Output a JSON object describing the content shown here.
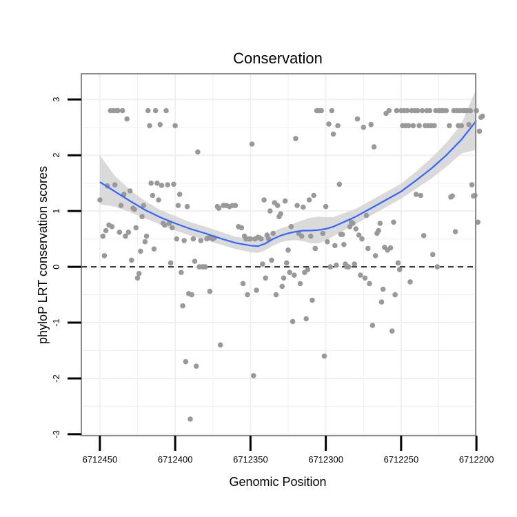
{
  "chart_data": {
    "type": "scatter",
    "title": "Conservation",
    "xlabel": "Genomic Position",
    "ylabel": "phyloP LRT conservation scores",
    "x_reversed": true,
    "xlim": [
      6712450,
      6712200
    ],
    "ylim": [
      -3,
      3
    ],
    "x_ticks": [
      6712450,
      6712400,
      6712350,
      6712300,
      6712250,
      6712200
    ],
    "x_tick_labels": [
      "6712450",
      "6712400",
      "6712350",
      "6712300",
      "6712250",
      "6712200"
    ],
    "y_ticks": [
      -3,
      -2,
      -1,
      0,
      1,
      2,
      3
    ],
    "y_tick_labels": [
      "-3",
      "-2",
      "-1",
      "0",
      "1",
      "2",
      "3"
    ],
    "reference_line": {
      "y": 0,
      "style": "dashed"
    },
    "colors": {
      "points": "#999999",
      "smooth_line": "#3366ff",
      "band": "#d3d3d3",
      "grid": "#f0f0f0",
      "panel_border": "#8c8c8c"
    },
    "series": [
      {
        "name": "scores",
        "points": [
          [
            6712450,
            1.2
          ],
          [
            6712448,
            0.55
          ],
          [
            6712447,
            0.2
          ],
          [
            6712446,
            0.65
          ],
          [
            6712445,
            1.45
          ],
          [
            6712444,
            0.75
          ],
          [
            6712443,
            2.8
          ],
          [
            6712442,
            0.72
          ],
          [
            6712441,
            2.8
          ],
          [
            6712440,
            1.47
          ],
          [
            6712439,
            2.8
          ],
          [
            6712438,
            2.8
          ],
          [
            6712437,
            0.62
          ],
          [
            6712436,
            1.1
          ],
          [
            6712435,
            2.8
          ],
          [
            6712434,
            1.3
          ],
          [
            6712433,
            0.55
          ],
          [
            6712432,
            2.65
          ],
          [
            6712431,
            0.62
          ],
          [
            6712430,
            1.36
          ],
          [
            6712429,
            0.12
          ],
          [
            6712428,
            1.05
          ],
          [
            6712427,
            1.03
          ],
          [
            6712426,
            0.7
          ],
          [
            6712425,
            -0.2
          ],
          [
            6712424,
            -0.12
          ],
          [
            6712423,
            0.28
          ],
          [
            6712422,
            0.9
          ],
          [
            6712421,
            1.1
          ],
          [
            6712420,
            0.45
          ],
          [
            6712419,
            0.55
          ],
          [
            6712418,
            2.8
          ],
          [
            6712417,
            2.53
          ],
          [
            6712416,
            1.5
          ],
          [
            6712415,
            1.28
          ],
          [
            6712414,
            0.32
          ],
          [
            6712413,
            2.8
          ],
          [
            6712412,
            1.5
          ],
          [
            6712411,
            1.2
          ],
          [
            6712410,
            2.55
          ],
          [
            6712409,
            1.46
          ],
          [
            6712408,
            0.78
          ],
          [
            6712407,
            0.75
          ],
          [
            6712406,
            2.8
          ],
          [
            6712405,
            1.47
          ],
          [
            6712404,
            0.78
          ],
          [
            6712403,
            0.07
          ],
          [
            6712402,
            0.7
          ],
          [
            6712401,
            1.48
          ],
          [
            6712400,
            2.53
          ],
          [
            6712399,
            0.5
          ],
          [
            6712398,
            1.1
          ],
          [
            6712397,
            1.3
          ],
          [
            6712396,
            -0.1
          ],
          [
            6712395,
            -0.7
          ],
          [
            6712394,
            0.47
          ],
          [
            6712393,
            -1.7
          ],
          [
            6712392,
            1.08
          ],
          [
            6712391,
            -0.48
          ],
          [
            6712390,
            -2.73
          ],
          [
            6712389,
            -0.5
          ],
          [
            6712388,
            0.5
          ],
          [
            6712387,
            0.1
          ],
          [
            6712386,
            -1.78
          ],
          [
            6712385,
            2.06
          ],
          [
            6712384,
            0.0
          ],
          [
            6712383,
            0.47
          ],
          [
            6712382,
            0.0
          ],
          [
            6712381,
            0.0
          ],
          [
            6712380,
            0.0
          ],
          [
            6712379,
            0.5
          ],
          [
            6712378,
            0.52
          ],
          [
            6712377,
            -0.44
          ],
          [
            6712376,
            0.52
          ],
          [
            6712375,
            0.5
          ],
          [
            6712374,
            0.52
          ],
          [
            6712372,
            1.08
          ],
          [
            6712371,
            1.05
          ],
          [
            6712370,
            -1.4
          ],
          [
            6712368,
            1.1
          ],
          [
            6712366,
            1.1
          ],
          [
            6712364,
            1.08
          ],
          [
            6712362,
            1.1
          ],
          [
            6712360,
            1.1
          ],
          [
            6712358,
            0.72
          ],
          [
            6712356,
            0.7
          ],
          [
            6712355,
            -0.3
          ],
          [
            6712354,
            0.55
          ],
          [
            6712353,
            0.5
          ],
          [
            6712352,
            -0.5
          ],
          [
            6712351,
            0.5
          ],
          [
            6712350,
            0.5
          ],
          [
            6712349,
            2.2
          ],
          [
            6712348,
            -1.95
          ],
          [
            6712347,
            0.5
          ],
          [
            6712346,
            -0.42
          ],
          [
            6712345,
            0.53
          ],
          [
            6712344,
            0.52
          ],
          [
            6712343,
            0.5
          ],
          [
            6712342,
            0.05
          ],
          [
            6712341,
            1.2
          ],
          [
            6712340,
            -0.2
          ],
          [
            6712339,
            0.57
          ],
          [
            6712338,
            0.5
          ],
          [
            6712337,
            1.0
          ],
          [
            6712336,
            0.12
          ],
          [
            6712335,
            0.6
          ],
          [
            6712334,
            1.15
          ],
          [
            6712333,
            -0.5
          ],
          [
            6712332,
            1.1
          ],
          [
            6712331,
            0.9
          ],
          [
            6712330,
            0.95
          ],
          [
            6712329,
            -0.35
          ],
          [
            6712328,
            -0.2
          ],
          [
            6712327,
            1.18
          ],
          [
            6712326,
            0.07
          ],
          [
            6712325,
            0.3
          ],
          [
            6712324,
            -0.1
          ],
          [
            6712323,
            0.72
          ],
          [
            6712322,
            -0.98
          ],
          [
            6712321,
            -0.15
          ],
          [
            6712320,
            2.3
          ],
          [
            6712319,
            1.1
          ],
          [
            6712318,
            0.6
          ],
          [
            6712317,
            -0.3
          ],
          [
            6712316,
            0.55
          ],
          [
            6712315,
            1.07
          ],
          [
            6712314,
            -0.1
          ],
          [
            6712313,
            -0.93
          ],
          [
            6712312,
            -0.05
          ],
          [
            6712311,
            1.2
          ],
          [
            6712310,
            0.55
          ],
          [
            6712309,
            -0.6
          ],
          [
            6712308,
            1.28
          ],
          [
            6712307,
            0.33
          ],
          [
            6712306,
            2.8
          ],
          [
            6712305,
            2.8
          ],
          [
            6712304,
            2.8
          ],
          [
            6712303,
            2.8
          ],
          [
            6712302,
            0.6
          ],
          [
            6712301,
            -1.6
          ],
          [
            6712300,
            1.08
          ],
          [
            6712299,
            0.45
          ],
          [
            6712298,
            2.56
          ],
          [
            6712297,
            0.0
          ],
          [
            6712296,
            2.8
          ],
          [
            6712295,
            2.38
          ],
          [
            6712294,
            0.38
          ],
          [
            6712293,
            0.03
          ],
          [
            6712292,
            2.53
          ],
          [
            6712291,
            1.48
          ],
          [
            6712290,
            0.58
          ],
          [
            6712289,
            0.58
          ],
          [
            6712288,
            0.4
          ],
          [
            6712287,
            0.05
          ],
          [
            6712286,
            0.0
          ],
          [
            6712285,
            0.0
          ],
          [
            6712284,
            0.72
          ],
          [
            6712283,
            0.8
          ],
          [
            6712282,
            0.78
          ],
          [
            6712281,
            0.05
          ],
          [
            6712280,
            0.68
          ],
          [
            6712279,
            2.65
          ],
          [
            6712278,
            0.57
          ],
          [
            6712277,
            -0.15
          ],
          [
            6712276,
            0.5
          ],
          [
            6712275,
            2.5
          ],
          [
            6712274,
            -0.2
          ],
          [
            6712273,
            0.92
          ],
          [
            6712272,
            0.33
          ],
          [
            6712271,
            -0.3
          ],
          [
            6712270,
            2.55
          ],
          [
            6712269,
            -1.05
          ],
          [
            6712268,
            2.15
          ],
          [
            6712267,
            0.2
          ],
          [
            6712266,
            0.6
          ],
          [
            6712265,
            0.65
          ],
          [
            6712264,
            0.78
          ],
          [
            6712263,
            -0.63
          ],
          [
            6712262,
            -0.4
          ],
          [
            6712261,
            0.35
          ],
          [
            6712260,
            2.75
          ],
          [
            6712259,
            0.3
          ],
          [
            6712258,
            2.8
          ],
          [
            6712257,
            0.34
          ],
          [
            6712256,
            -1.15
          ],
          [
            6712255,
            0.8
          ],
          [
            6712254,
            -0.5
          ],
          [
            6712253,
            2.8
          ],
          [
            6712252,
            0.07
          ],
          [
            6712251,
            -0.05
          ],
          [
            6712250,
            2.8
          ],
          [
            6712249,
            2.53
          ],
          [
            6712248,
            2.8
          ],
          [
            6712247,
            2.53
          ],
          [
            6712246,
            2.8
          ],
          [
            6712245,
            2.53
          ],
          [
            6712244,
            -0.27
          ],
          [
            6712243,
            2.8
          ],
          [
            6712242,
            2.53
          ],
          [
            6712241,
            2.8
          ],
          [
            6712240,
            1.3
          ],
          [
            6712239,
            2.8
          ],
          [
            6712238,
            2.53
          ],
          [
            6712237,
            1.28
          ],
          [
            6712236,
            2.8
          ],
          [
            6712235,
            0.56
          ],
          [
            6712234,
            2.53
          ],
          [
            6712233,
            2.8
          ],
          [
            6712232,
            2.53
          ],
          [
            6712231,
            2.8
          ],
          [
            6712230,
            2.53
          ],
          [
            6712229,
            0.22
          ],
          [
            6712228,
            2.53
          ],
          [
            6712227,
            2.8
          ],
          [
            6712226,
            0.0
          ],
          [
            6712225,
            2.8
          ],
          [
            6712224,
            2.8
          ],
          [
            6712223,
            2.8
          ],
          [
            6712222,
            2.8
          ],
          [
            6712220,
            2.8
          ],
          [
            6712218,
            2.53
          ],
          [
            6712217,
            1.25
          ],
          [
            6712216,
            1.27
          ],
          [
            6712215,
            2.8
          ],
          [
            6712214,
            0.63
          ],
          [
            6712213,
            2.8
          ],
          [
            6712212,
            2.53
          ],
          [
            6712211,
            2.8
          ],
          [
            6712210,
            2.53
          ],
          [
            6712209,
            2.8
          ],
          [
            6712208,
            2.8
          ],
          [
            6712207,
            2.8
          ],
          [
            6712206,
            2.8
          ],
          [
            6712205,
            2.55
          ],
          [
            6712204,
            2.8
          ],
          [
            6712203,
            1.47
          ],
          [
            6712202,
            1.27
          ],
          [
            6712201,
            1.28
          ],
          [
            6712200,
            2.8
          ],
          [
            6712199,
            0.8
          ],
          [
            6712198,
            2.43
          ],
          [
            6712197,
            2.68
          ],
          [
            6712196,
            2.7
          ]
        ]
      },
      {
        "name": "smooth",
        "x": [
          6712450,
          6712440,
          6712430,
          6712420,
          6712410,
          6712400,
          6712390,
          6712380,
          6712370,
          6712360,
          6712350,
          6712345,
          6712340,
          6712335,
          6712330,
          6712325,
          6712320,
          6712315,
          6712310,
          6712305,
          6712300,
          6712295,
          6712290,
          6712280,
          6712270,
          6712260,
          6712250,
          6712240,
          6712230,
          6712220,
          6712210,
          6712200
        ],
        "values": [
          1.52,
          1.35,
          1.18,
          1.02,
          0.89,
          0.78,
          0.68,
          0.6,
          0.51,
          0.43,
          0.38,
          0.37,
          0.42,
          0.5,
          0.56,
          0.6,
          0.63,
          0.65,
          0.65,
          0.66,
          0.68,
          0.72,
          0.78,
          0.9,
          1.05,
          1.2,
          1.35,
          1.55,
          1.76,
          2.0,
          2.28,
          2.62
        ],
        "band_lower": [
          1.12,
          1.08,
          0.98,
          0.87,
          0.76,
          0.65,
          0.56,
          0.48,
          0.4,
          0.32,
          0.26,
          0.25,
          0.3,
          0.38,
          0.44,
          0.47,
          0.48,
          0.46,
          0.42,
          0.42,
          0.47,
          0.55,
          0.62,
          0.77,
          0.92,
          1.07,
          1.22,
          1.4,
          1.58,
          1.79,
          2.03,
          2.1
        ],
        "band_upper": [
          2.0,
          1.63,
          1.38,
          1.18,
          1.02,
          0.91,
          0.8,
          0.72,
          0.63,
          0.54,
          0.5,
          0.49,
          0.55,
          0.63,
          0.69,
          0.73,
          0.79,
          0.84,
          0.88,
          0.9,
          0.89,
          0.89,
          0.94,
          1.04,
          1.19,
          1.34,
          1.49,
          1.71,
          1.95,
          2.22,
          2.56,
          3.2
        ]
      }
    ]
  }
}
